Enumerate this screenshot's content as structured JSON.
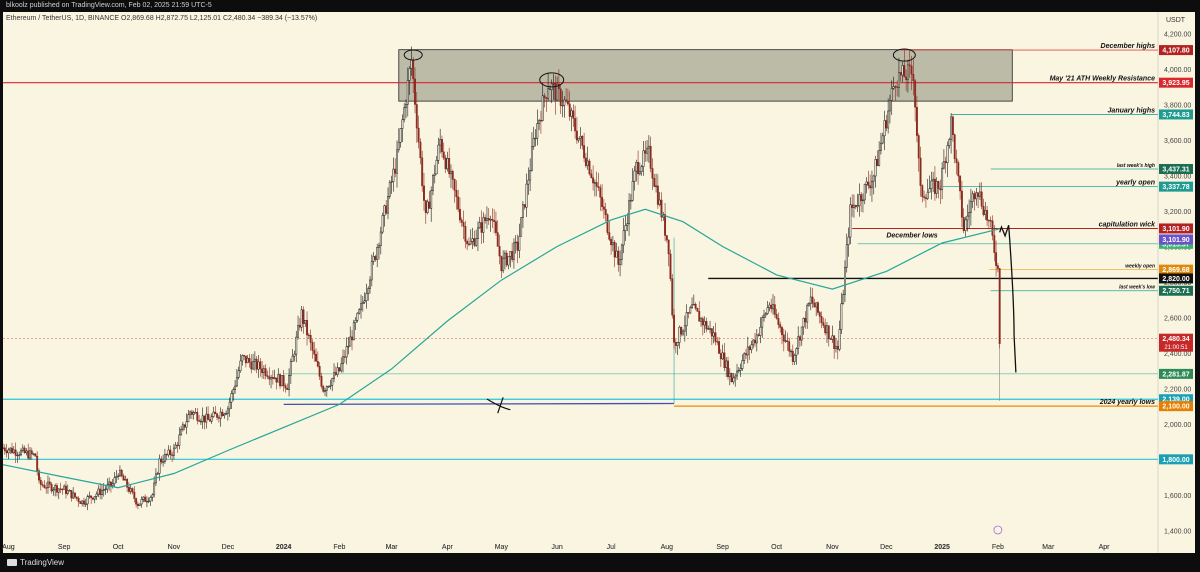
{
  "header": {
    "publisher": "blkoolz published on TradingView.com, Feb 02, 2025 21:59 UTC-5",
    "symbol_line": "Ethereum / TetherUS, 1D, BINANCE  O2,869.68  H2,872.75  L2,125.01  C2,480.34  −389.34 (−13.57%)",
    "currency": "USDT"
  },
  "footer": {
    "brand": "TradingView"
  },
  "colors": {
    "background": "#f9f5e0",
    "frame": "#0d0d0d",
    "candle_up": "#1a1a1a",
    "candle_down": "#8b2a1f",
    "ma_line": "#26a69a",
    "zone_fill": "#8a8a7a"
  },
  "chart_data": {
    "type": "candlestick",
    "ylim": [
      1300,
      4300
    ],
    "y_ticks": [
      {
        "v": 4200,
        "label": "4,200.00"
      },
      {
        "v": 4000,
        "label": "4,000.00"
      },
      {
        "v": 3800,
        "label": "3,800.00"
      },
      {
        "v": 3600,
        "label": "3,600.00"
      },
      {
        "v": 3400,
        "label": "3,400.00"
      },
      {
        "v": 3200,
        "label": "3,200.00"
      },
      {
        "v": 3000,
        "label": "3,000.00"
      },
      {
        "v": 2800,
        "label": "2,800.00"
      },
      {
        "v": 2600,
        "label": "2,600.00"
      },
      {
        "v": 2400,
        "label": "2,400.00"
      },
      {
        "v": 2200,
        "label": "2,200.00"
      },
      {
        "v": 2000,
        "label": "2,000.00"
      },
      {
        "v": 1800,
        "label": "1,800.00"
      },
      {
        "v": 1600,
        "label": "1,600.00"
      },
      {
        "v": 1400,
        "label": "1,400.00"
      }
    ],
    "x_ticks": [
      {
        "d": "2023-08-01",
        "label": "Aug"
      },
      {
        "d": "2023-09-01",
        "label": "Sep"
      },
      {
        "d": "2023-10-01",
        "label": "Oct"
      },
      {
        "d": "2023-11-01",
        "label": "Nov"
      },
      {
        "d": "2023-12-01",
        "label": "Dec"
      },
      {
        "d": "2024-01-01",
        "label": "2024"
      },
      {
        "d": "2024-02-01",
        "label": "Feb"
      },
      {
        "d": "2024-03-01",
        "label": "Mar"
      },
      {
        "d": "2024-04-01",
        "label": "Apr"
      },
      {
        "d": "2024-05-01",
        "label": "May"
      },
      {
        "d": "2024-06-01",
        "label": "Jun"
      },
      {
        "d": "2024-07-01",
        "label": "Jul"
      },
      {
        "d": "2024-08-01",
        "label": "Aug"
      },
      {
        "d": "2024-09-01",
        "label": "Sep"
      },
      {
        "d": "2024-10-01",
        "label": "Oct"
      },
      {
        "d": "2024-11-01",
        "label": "Nov"
      },
      {
        "d": "2024-12-01",
        "label": "Dec"
      },
      {
        "d": "2025-01-01",
        "label": "2025"
      },
      {
        "d": "2025-02-01",
        "label": "Feb"
      },
      {
        "d": "2025-03-01",
        "label": "Mar"
      },
      {
        "d": "2025-04-01",
        "label": "Apr"
      }
    ],
    "x_range": [
      "2023-07-29",
      "2025-05-01"
    ],
    "path": [
      [
        "2023-07-29",
        1865
      ],
      [
        "2023-08-16",
        1820
      ],
      [
        "2023-08-18",
        1660
      ],
      [
        "2023-09-01",
        1630
      ],
      [
        "2023-09-11",
        1560
      ],
      [
        "2023-09-28",
        1660
      ],
      [
        "2023-10-01",
        1730
      ],
      [
        "2023-10-12",
        1550
      ],
      [
        "2023-10-20",
        1600
      ],
      [
        "2023-10-24",
        1790
      ],
      [
        "2023-11-01",
        1850
      ],
      [
        "2023-11-10",
        2070
      ],
      [
        "2023-11-20",
        2020
      ],
      [
        "2023-12-01",
        2090
      ],
      [
        "2023-12-09",
        2370
      ],
      [
        "2023-12-22",
        2300
      ],
      [
        "2024-01-03",
        2220
      ],
      [
        "2024-01-11",
        2620
      ],
      [
        "2024-01-23",
        2200
      ],
      [
        "2024-02-01",
        2300
      ],
      [
        "2024-02-13",
        2650
      ],
      [
        "2024-02-21",
        2960
      ],
      [
        "2024-03-04",
        3500
      ],
      [
        "2024-03-12",
        4050
      ],
      [
        "2024-03-20",
        3150
      ],
      [
        "2024-03-28",
        3600
      ],
      [
        "2024-04-13",
        3000
      ],
      [
        "2024-04-25",
        3200
      ],
      [
        "2024-05-01",
        2900
      ],
      [
        "2024-05-10",
        3000
      ],
      [
        "2024-05-20",
        3650
      ],
      [
        "2024-05-27",
        3920
      ],
      [
        "2024-06-06",
        3800
      ],
      [
        "2024-06-18",
        3480
      ],
      [
        "2024-06-24",
        3300
      ],
      [
        "2024-07-05",
        2900
      ],
      [
        "2024-07-15",
        3450
      ],
      [
        "2024-07-22",
        3520
      ],
      [
        "2024-08-02",
        3000
      ],
      [
        "2024-08-05",
        2450
      ],
      [
        "2024-08-15",
        2650
      ],
      [
        "2024-08-27",
        2500
      ],
      [
        "2024-09-06",
        2250
      ],
      [
        "2024-09-20",
        2500
      ],
      [
        "2024-09-27",
        2680
      ],
      [
        "2024-10-10",
        2380
      ],
      [
        "2024-10-20",
        2700
      ],
      [
        "2024-11-04",
        2420
      ],
      [
        "2024-11-11",
        3200
      ],
      [
        "2024-11-24",
        3400
      ],
      [
        "2024-12-06",
        3950
      ],
      [
        "2024-12-16",
        3980
      ],
      [
        "2024-12-20",
        3300
      ],
      [
        "2024-12-31",
        3350
      ],
      [
        "2025-01-06",
        3700
      ],
      [
        "2025-01-13",
        3100
      ],
      [
        "2025-01-20",
        3350
      ],
      [
        "2025-01-28",
        3100
      ],
      [
        "2025-02-01",
        2870
      ],
      [
        "2025-02-02",
        2480
      ]
    ],
    "ma": [
      [
        "2023-07-29",
        1770
      ],
      [
        "2023-09-01",
        1700
      ],
      [
        "2023-10-01",
        1640
      ],
      [
        "2023-11-01",
        1720
      ],
      [
        "2023-12-01",
        1850
      ],
      [
        "2024-01-01",
        1980
      ],
      [
        "2024-02-01",
        2110
      ],
      [
        "2024-03-01",
        2310
      ],
      [
        "2024-04-01",
        2580
      ],
      [
        "2024-05-01",
        2810
      ],
      [
        "2024-06-01",
        3000
      ],
      [
        "2024-07-01",
        3150
      ],
      [
        "2024-07-20",
        3210
      ],
      [
        "2024-08-10",
        3140
      ],
      [
        "2024-09-01",
        3000
      ],
      [
        "2024-10-01",
        2840
      ],
      [
        "2024-11-01",
        2760
      ],
      [
        "2024-12-01",
        2860
      ],
      [
        "2025-01-01",
        3020
      ],
      [
        "2025-02-02",
        3100
      ]
    ],
    "zone": {
      "from": "2024-03-05",
      "to": "2025-02-09",
      "top": 4110,
      "bottom": 3820
    },
    "levels": [
      {
        "v": 4107.8,
        "price": "4,107.80",
        "label": "December highs",
        "color": "#e04b4b",
        "from": "2024-12-09",
        "badge": "#b22222",
        "width": 0.8
      },
      {
        "v": 3923.95,
        "price": "3,923.95",
        "label": "May '21 ATH Weekly Resistance",
        "color": "#d8282c",
        "from": "2023-07-29",
        "badge": "#d8282c",
        "width": 1.2
      },
      {
        "v": 3744.83,
        "price": "3,744.83",
        "label": "January highs",
        "color": "#26a69a",
        "from": "2025-01-06",
        "badge": "#1f9c91",
        "width": 0.8
      },
      {
        "v": 3437.31,
        "price": "3,437.31",
        "label": "last week's high",
        "color": "#26a69a",
        "from": "2025-01-28",
        "badge": "#1b6e52",
        "width": 0.8,
        "small": true
      },
      {
        "v": 3337.78,
        "price": "3,337.78",
        "label": "yearly open",
        "color": "#26a69a",
        "from": "2024-12-31",
        "badge": "#1f9c91",
        "width": 0.8
      },
      {
        "v": 3101.9,
        "price": "3,101.90",
        "label": "capitulation wick",
        "color": "#b22222",
        "from": "2024-12-10",
        "badge": "#b22222",
        "width": 1.0
      },
      {
        "v": 3015.37,
        "price": "3,015.37",
        "label": "",
        "color": "#26a69a",
        "from": "2024-11-15",
        "badge": "#3cb371",
        "width": 0.6
      },
      {
        "v": 2869.68,
        "price": "2,869.68",
        "label": "weekly open",
        "color": "#f0a020",
        "from": "2025-01-27",
        "badge": "#e08a0a",
        "width": 0.6,
        "small": true
      },
      {
        "v": 2820,
        "price": "2,820.00",
        "label": "",
        "color": "#111111",
        "from": "2024-08-24",
        "badge": "#111111",
        "width": 1.4
      },
      {
        "v": 2750.71,
        "price": "2,750.71",
        "label": "last week's low",
        "color": "#26a69a",
        "from": "2025-01-28",
        "badge": "#1b6e52",
        "width": 0.8,
        "small": true
      },
      {
        "v": 2480.34,
        "price": "2,480.34",
        "label": "",
        "color": "#d05050",
        "from": "2023-07-29",
        "badge": "#c62828",
        "width": 0.5,
        "dashed": true
      },
      {
        "v": 2281.87,
        "price": "2,281.87",
        "label": "",
        "color": "#26a69a",
        "from": "2024-01-01",
        "badge": "#2e8b57",
        "width": 0.5
      },
      {
        "v": 2139,
        "price": "2,139.00",
        "label": "",
        "color": "#26c6da",
        "from": "2023-07-29",
        "badge": "#1aa0b5",
        "width": 1.2
      },
      {
        "v": 2100,
        "price": "2,100.00",
        "label": "2024 yearly lows",
        "color": "#f08a00",
        "from": "2024-08-05",
        "badge": "#e67e00",
        "width": 1.2
      },
      {
        "v": 1800,
        "price": "1,800.00",
        "label": "",
        "color": "#26c6da",
        "from": "2023-07-29",
        "badge": "#1aa0b5",
        "width": 1.2
      }
    ],
    "extra_labels": [
      {
        "text": "December lows",
        "d": "2024-12-08",
        "v": 3101.9
      },
      {
        "text": "2,480.34",
        "sub": "21:00:51"
      }
    ],
    "countdown": "21:00:51"
  }
}
